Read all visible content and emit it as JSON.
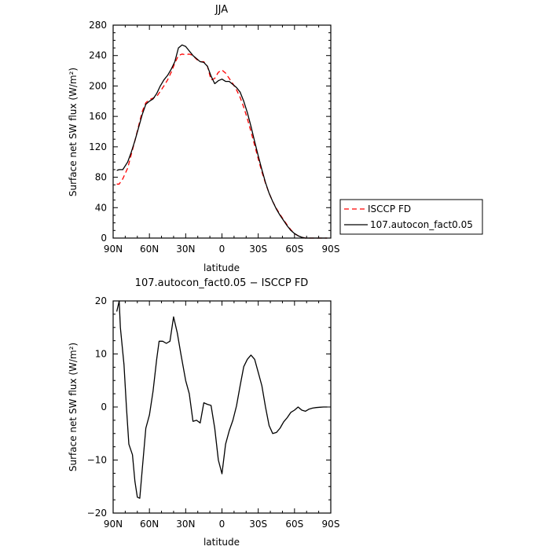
{
  "chart_data": [
    {
      "type": "line",
      "title": "JJA",
      "xlabel": "latitude",
      "ylabel": "Surface net SW flux (W/m²)",
      "xlim": [
        90,
        -90
      ],
      "ylim": [
        0,
        280
      ],
      "xticks": [
        90,
        60,
        30,
        0,
        -30,
        -60,
        -90
      ],
      "xtick_labels": [
        "90N",
        "60N",
        "30N",
        "0",
        "30S",
        "60S",
        "90S"
      ],
      "yticks": [
        0,
        40,
        80,
        120,
        160,
        200,
        240,
        280
      ],
      "ytick_labels": [
        "0",
        "40",
        "80",
        "120",
        "160",
        "200",
        "240",
        "280"
      ],
      "legend": {
        "placement": "right",
        "entries": [
          "ISCCP FD",
          "107.autocon_fact0.05"
        ]
      },
      "series": [
        {
          "name": "ISCCP FD",
          "color": "#ff0000",
          "dash": "dashed",
          "x": [
            87,
            85,
            82,
            78,
            75,
            72,
            69,
            66,
            63,
            60,
            57,
            54,
            51,
            48,
            45,
            42,
            39,
            36,
            33,
            30,
            27,
            24,
            21,
            18,
            15,
            12,
            9,
            6,
            3,
            0,
            -3,
            -6,
            -9,
            -12,
            -15,
            -18,
            -21,
            -24,
            -27,
            -30,
            -33,
            -36,
            -39,
            -42,
            -45,
            -48,
            -51,
            -54,
            -57,
            -60,
            -63,
            -66,
            -69,
            -72,
            -75,
            -78,
            -81,
            -84,
            -87
          ],
          "y": [
            71,
            71,
            78,
            92,
            110,
            128,
            147,
            166,
            178,
            182,
            184,
            186,
            193,
            200,
            208,
            218,
            230,
            240,
            242,
            241,
            242,
            240,
            235,
            232,
            232,
            226,
            208,
            210,
            218,
            221,
            217,
            210,
            203,
            195,
            185,
            172,
            157,
            140,
            122,
            104,
            87,
            72,
            59,
            48,
            39,
            31,
            24,
            17,
            11,
            6,
            3,
            1,
            0,
            0,
            0,
            0,
            0,
            0,
            0
          ]
        },
        {
          "name": "107.autocon_fact0.05",
          "color": "#000000",
          "dash": "solid",
          "x": [
            87,
            85,
            82,
            78,
            75,
            72,
            69,
            66,
            63,
            60,
            57,
            54,
            51,
            48,
            45,
            42,
            39,
            36,
            33,
            30,
            27,
            24,
            21,
            18,
            15,
            12,
            9,
            6,
            3,
            0,
            -3,
            -6,
            -9,
            -12,
            -15,
            -18,
            -21,
            -24,
            -27,
            -30,
            -33,
            -36,
            -39,
            -42,
            -45,
            -48,
            -51,
            -54,
            -57,
            -60,
            -63,
            -66,
            -69,
            -72,
            -75,
            -78,
            -81,
            -84,
            -87
          ],
          "y": [
            89,
            90,
            90,
            100,
            113,
            128,
            145,
            162,
            176,
            180,
            183,
            190,
            200,
            208,
            214,
            222,
            232,
            250,
            254,
            252,
            246,
            240,
            236,
            232,
            231,
            226,
            213,
            203,
            207,
            209,
            206,
            206,
            202,
            198,
            192,
            180,
            165,
            147,
            127,
            108,
            90,
            73,
            59,
            48,
            38,
            30,
            23,
            16,
            10,
            6,
            3,
            1,
            0,
            0,
            0,
            0,
            0,
            0,
            0
          ]
        }
      ]
    },
    {
      "type": "line",
      "title": "107.autocon_fact0.05 − ISCCP FD",
      "xlabel": "latitude",
      "ylabel": "Surface net SW flux (W/m²)",
      "xlim": [
        90,
        -90
      ],
      "ylim": [
        -20,
        20
      ],
      "xticks": [
        90,
        60,
        30,
        0,
        -30,
        -60,
        -90
      ],
      "xtick_labels": [
        "90N",
        "60N",
        "30N",
        "0",
        "30S",
        "60S",
        "90S"
      ],
      "yticks": [
        -20,
        -10,
        0,
        10,
        20
      ],
      "ytick_labels": [
        "−20",
        "−10",
        "0",
        "10",
        "20"
      ],
      "series": [
        {
          "color": "#000000",
          "dash": "solid",
          "x": [
            87,
            85,
            84,
            81,
            79,
            77,
            74,
            72,
            70,
            68,
            66,
            63,
            60,
            57,
            54,
            52,
            49,
            46,
            43,
            40,
            37,
            34,
            30,
            27,
            24,
            21,
            18,
            15,
            12,
            9,
            6,
            3,
            0,
            -3,
            -6,
            -9,
            -12,
            -15,
            -18,
            -21,
            -24,
            -27,
            -30,
            -33,
            -36,
            -39,
            -42,
            -45,
            -48,
            -51,
            -54,
            -57,
            -60,
            -63,
            -66,
            -69,
            -72,
            -75,
            -78,
            -81,
            -84,
            -87
          ],
          "y": [
            18,
            20,
            15,
            8,
            0,
            -7,
            -9,
            -14,
            -17,
            -17.2,
            -12,
            -4,
            -1.5,
            3,
            9,
            12.4,
            12.4,
            12,
            12.4,
            17,
            14,
            10,
            5,
            2.5,
            -2.7,
            -2.5,
            -3,
            0.8,
            0.5,
            0.3,
            -4,
            -10,
            -12.6,
            -7,
            -4.5,
            -2.5,
            0.2,
            4,
            7.6,
            9,
            9.8,
            9,
            6.5,
            4,
            0,
            -3.5,
            -5,
            -4.8,
            -4,
            -2.8,
            -2,
            -1,
            -0.6,
            0,
            -0.6,
            -0.8,
            -0.4,
            -0.2,
            -0.1,
            -0.05,
            0,
            0
          ]
        }
      ]
    }
  ]
}
